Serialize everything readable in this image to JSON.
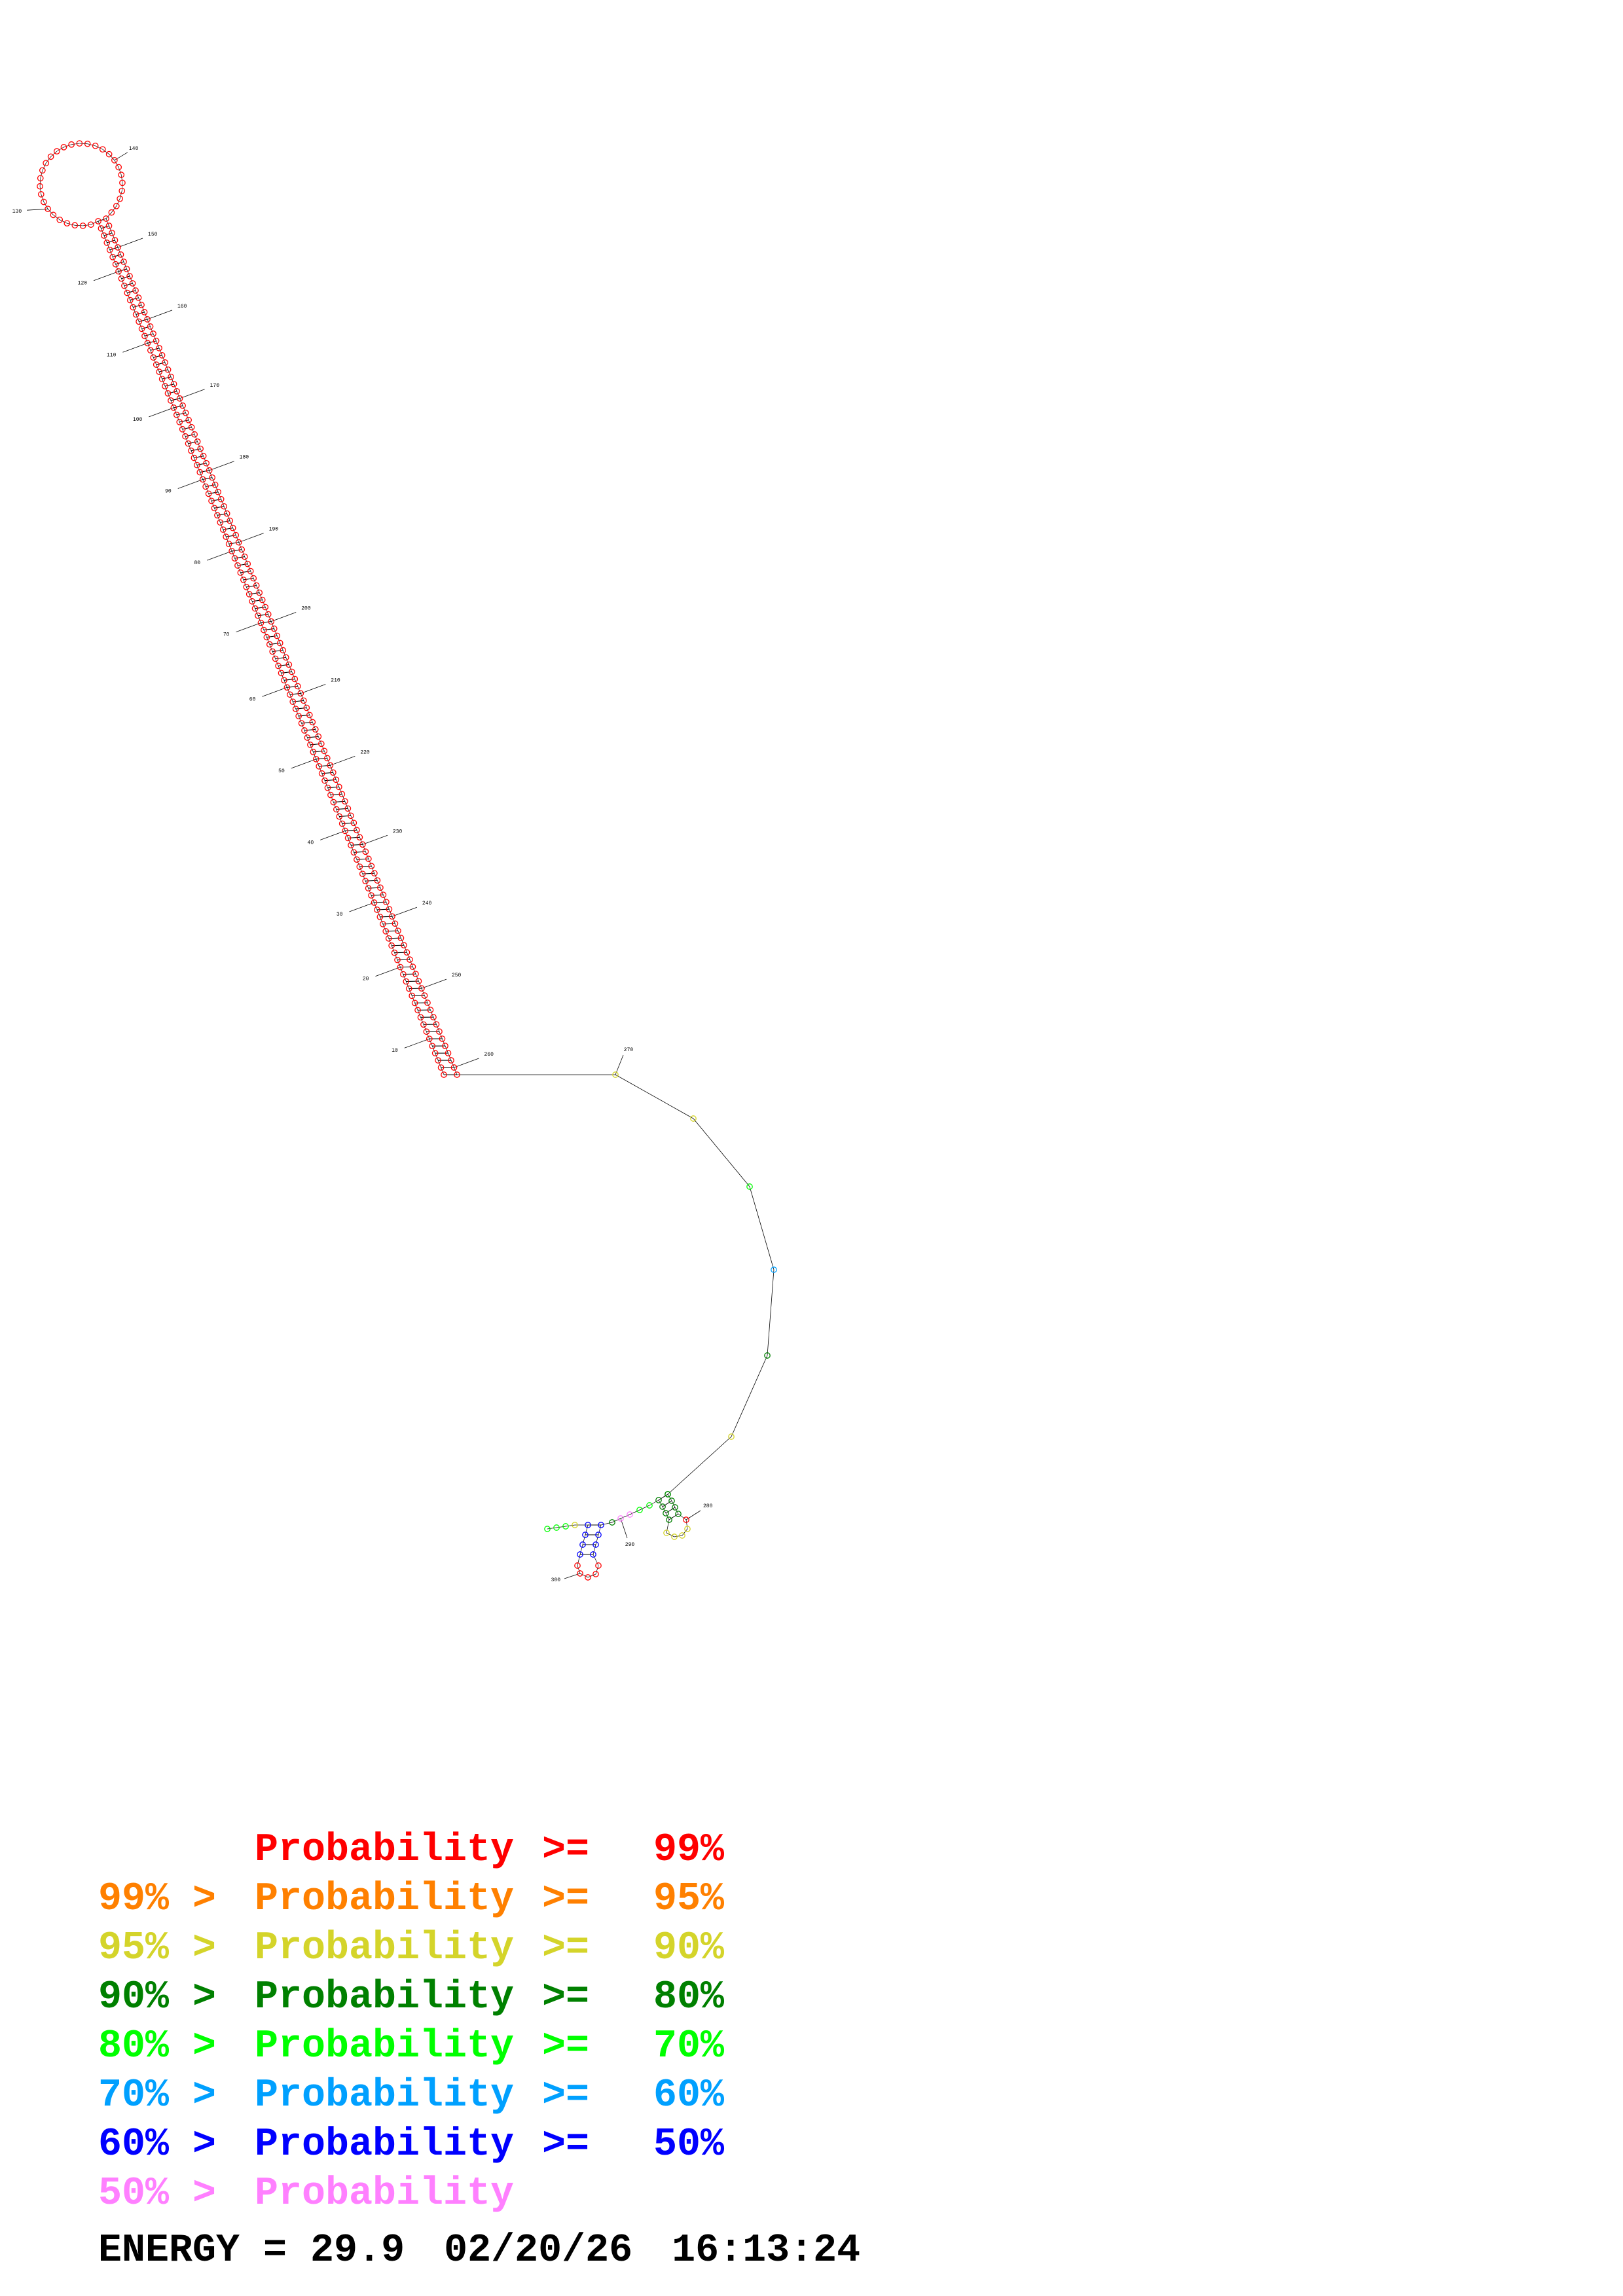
{
  "colors": {
    "p99": "#ff0000",
    "p95": "#ff8000",
    "p90": "#d4d42a",
    "p80": "#008000",
    "p70": "#00ff00",
    "p60": "#00a0ff",
    "p50": "#0000ff",
    "plt50": "#ff80ff",
    "line": "#000000"
  },
  "numbering": [
    "10",
    "20",
    "30",
    "40",
    "50",
    "60",
    "70",
    "80",
    "90",
    "100",
    "110",
    "120",
    "130",
    "140",
    "150",
    "160",
    "170",
    "180",
    "190",
    "200",
    "210",
    "220",
    "230",
    "240",
    "250",
    "260",
    "270",
    "280",
    "290",
    "300"
  ],
  "legend": [
    {
      "prefix": "",
      "label": "Probability",
      "rel": ">=",
      "thr": "99%",
      "color": "#ff0000"
    },
    {
      "prefix": "99% >",
      "label": "Probability",
      "rel": ">=",
      "thr": "95%",
      "color": "#ff8000"
    },
    {
      "prefix": "95% >",
      "label": "Probability",
      "rel": ">=",
      "thr": "90%",
      "color": "#d4d42a"
    },
    {
      "prefix": "90% >",
      "label": "Probability",
      "rel": ">=",
      "thr": "80%",
      "color": "#008000"
    },
    {
      "prefix": "80% >",
      "label": "Probability",
      "rel": ">=",
      "thr": "70%",
      "color": "#00ff00"
    },
    {
      "prefix": "70% >",
      "label": "Probability",
      "rel": ">=",
      "thr": "60%",
      "color": "#00a0ff"
    },
    {
      "prefix": "60% >",
      "label": "Probability",
      "rel": ">=",
      "thr": "50%",
      "color": "#0000ff"
    },
    {
      "prefix": "50% >",
      "label": "Probability",
      "rel": "",
      "thr": "",
      "color": "#ff80ff"
    }
  ],
  "footer": {
    "energy": "ENERGY = 29.9",
    "date": "02/20/26",
    "time": "16:13:24"
  }
}
